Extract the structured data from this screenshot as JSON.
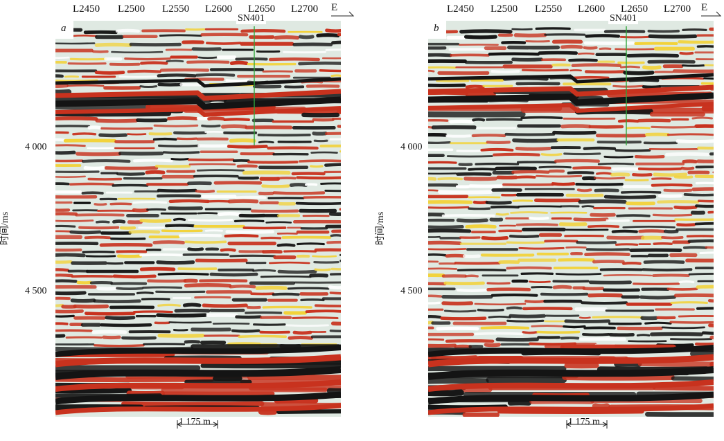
{
  "figure": {
    "panels": [
      {
        "id": "a",
        "letter": "a",
        "traces": [
          "L2450",
          "L2500",
          "L2550",
          "L2600",
          "L2650",
          "L2700"
        ],
        "direction": "E",
        "well": "SN401",
        "y_ticks": [
          "4 000",
          "4 500"
        ],
        "y_title": "时间/ms",
        "scale_label": "1 175 m"
      },
      {
        "id": "b",
        "letter": "b",
        "traces": [
          "L2450",
          "L2500",
          "L2550",
          "L2600",
          "L2650",
          "L2700"
        ],
        "direction": "E",
        "well": "SN401",
        "y_ticks": [
          "4 000",
          "4 500"
        ],
        "y_title": "时间/ms",
        "scale_label": "1 175 m"
      }
    ],
    "colors": {
      "red": "#c8321e",
      "black": "#141414",
      "yellow": "#f2d23a",
      "light": "#dfe9e2",
      "well": "#2fa53a"
    }
  }
}
